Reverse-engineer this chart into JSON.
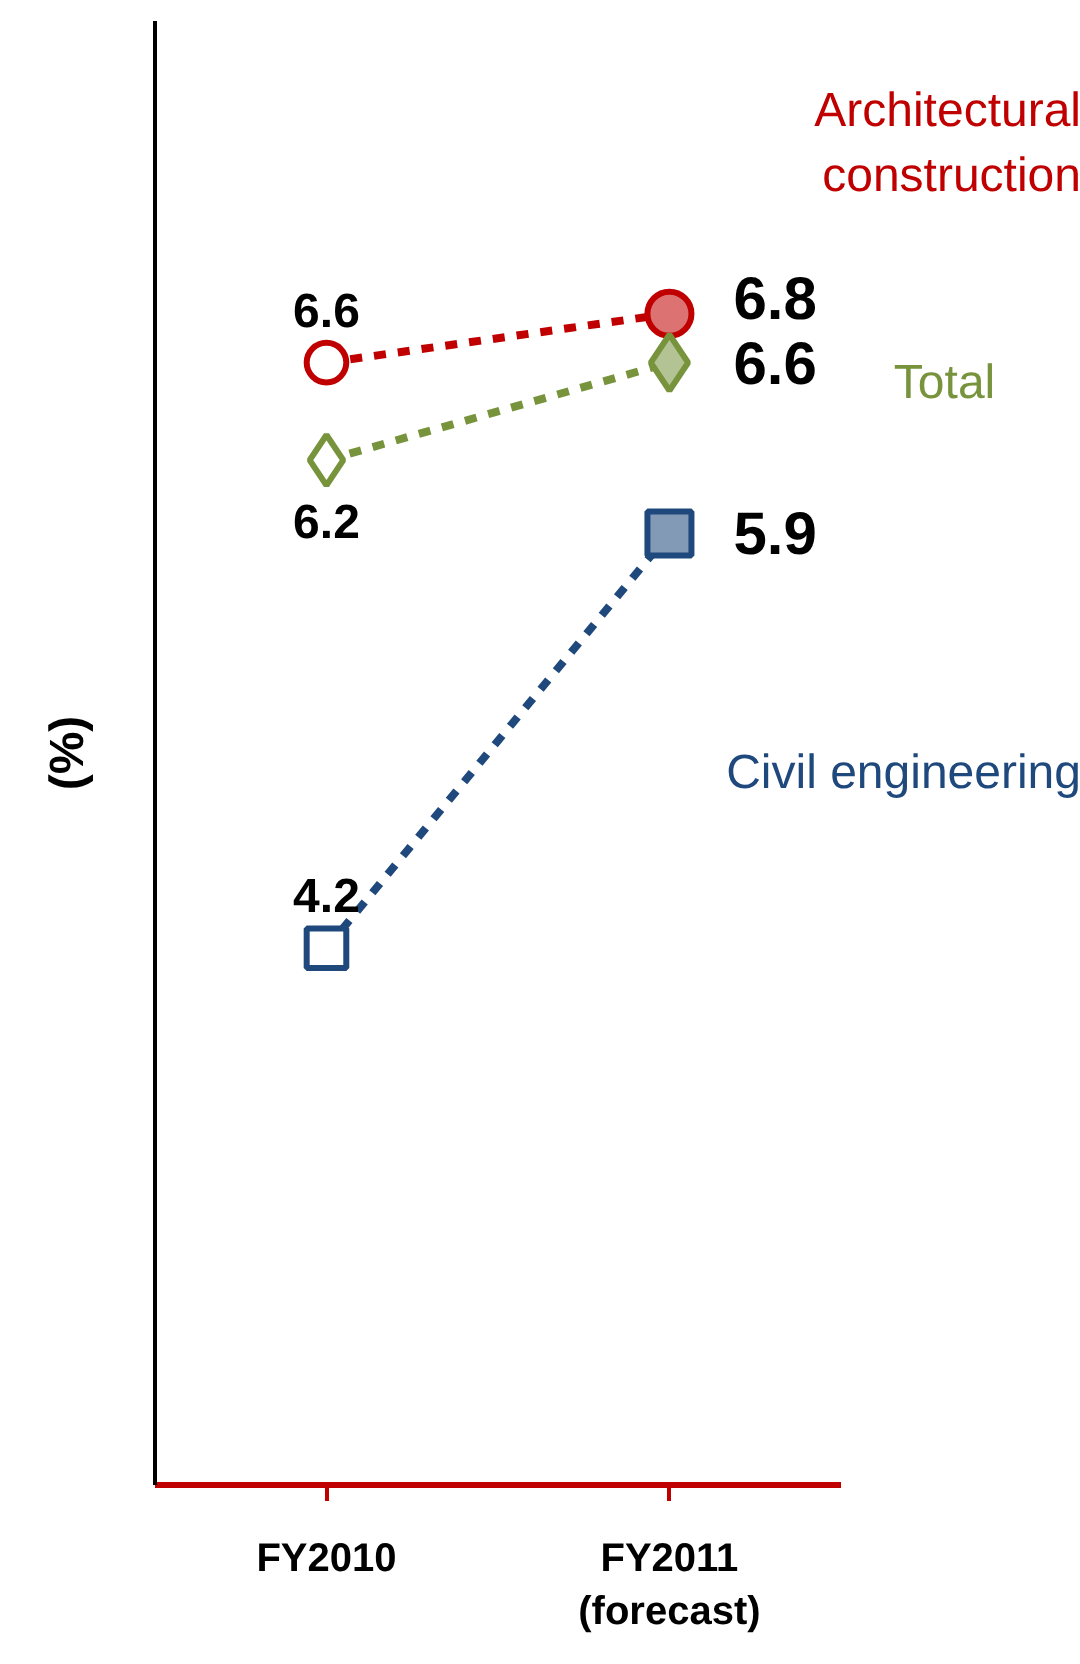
{
  "chart_data": {
    "type": "line",
    "ylabel": "(%)",
    "categories": [
      "FY2010",
      "FY2011 (forecast)"
    ],
    "ylim": [
      2,
      8
    ],
    "tick_labels": "x",
    "data_labels": true,
    "line_style": "dashed",
    "grid": false,
    "series": [
      {
        "name": "Architectural construction",
        "color": "#c00000",
        "marker": "circle",
        "values": [
          6.6,
          6.8
        ]
      },
      {
        "name": "Total",
        "color": "#77933c",
        "marker": "diamond",
        "values": [
          6.2,
          6.6
        ]
      },
      {
        "name": "Civil engineering",
        "color": "#1f497d",
        "marker": "square",
        "values": [
          4.2,
          5.9
        ]
      }
    ]
  }
}
